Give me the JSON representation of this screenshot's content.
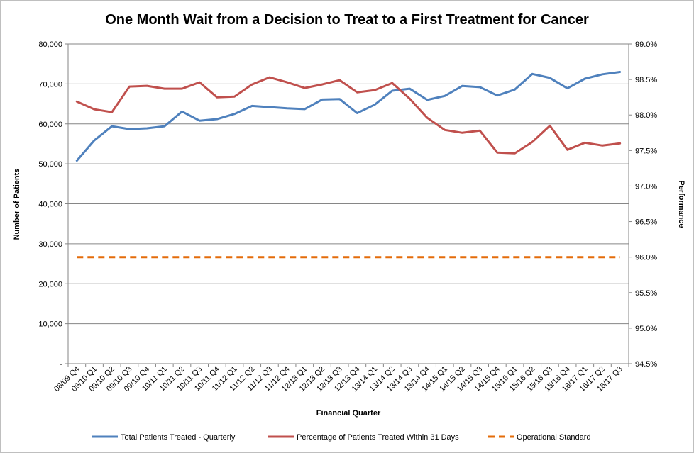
{
  "chart_data": {
    "type": "line",
    "title": "One Month Wait from a Decision to Treat to a First Treatment for Cancer",
    "xlabel": "Financial Quarter",
    "ylabel": "Number of Patients",
    "y2label": "Performance",
    "ylim": [
      0,
      80000
    ],
    "y2lim": [
      94.5,
      99.0
    ],
    "yticks": [
      "-",
      "10,000",
      "20,000",
      "30,000",
      "40,000",
      "50,000",
      "60,000",
      "70,000",
      "80,000"
    ],
    "y2ticks": [
      "94.5%",
      "95.0%",
      "95.5%",
      "96.0%",
      "96.5%",
      "97.0%",
      "97.5%",
      "98.0%",
      "98.5%",
      "99.0%"
    ],
    "grid": true,
    "legend_position": "bottom",
    "categories": [
      "08/09 Q4",
      "09/10 Q1",
      "09/10 Q2",
      "09/10 Q3",
      "09/10 Q4",
      "10/11 Q1",
      "10/11 Q2",
      "10/11 Q3",
      "10/11 Q4",
      "11/12 Q1",
      "11/12 Q2",
      "11/12 Q3",
      "11/12 Q4",
      "12/13 Q1",
      "12/13 Q2",
      "12/13 Q3",
      "12/13 Q4",
      "13/14 Q1",
      "13/14 Q2",
      "13/14 Q3",
      "13/14 Q4",
      "14/15 Q1",
      "14/15 Q2",
      "14/15 Q3",
      "14/15 Q4",
      "15/16 Q1",
      "15/16 Q2",
      "15/16 Q3",
      "15/16 Q4",
      "16/17 Q1",
      "16/17 Q2",
      "16/17 Q3"
    ],
    "series": [
      {
        "name": "Total Patients Treated - Quarterly",
        "axis": "left",
        "color": "#4f81bd",
        "dashed": false,
        "values": [
          50800,
          55900,
          59400,
          58700,
          58900,
          59400,
          63100,
          60800,
          61200,
          62500,
          64500,
          64200,
          63900,
          63700,
          66100,
          66200,
          62700,
          64800,
          68300,
          68800,
          66000,
          67000,
          69500,
          69200,
          67100,
          68600,
          72500,
          71500,
          68900,
          71300,
          72400,
          73000
        ]
      },
      {
        "name": "Percentage of Patients Treated Within 31 Days",
        "axis": "right",
        "color": "#c0504d",
        "dashed": false,
        "values": [
          98.19,
          98.08,
          98.04,
          98.4,
          98.41,
          98.37,
          98.37,
          98.46,
          98.25,
          98.26,
          98.43,
          98.53,
          98.46,
          98.38,
          98.43,
          98.49,
          98.32,
          98.35,
          98.45,
          98.23,
          97.96,
          97.79,
          97.75,
          97.78,
          97.47,
          97.46,
          97.62,
          97.85,
          97.51,
          97.61,
          97.57,
          97.6
        ]
      },
      {
        "name": "Operational Standard",
        "axis": "right",
        "color": "#e46c0a",
        "dashed": true,
        "values": [
          96.0,
          96.0,
          96.0,
          96.0,
          96.0,
          96.0,
          96.0,
          96.0,
          96.0,
          96.0,
          96.0,
          96.0,
          96.0,
          96.0,
          96.0,
          96.0,
          96.0,
          96.0,
          96.0,
          96.0,
          96.0,
          96.0,
          96.0,
          96.0,
          96.0,
          96.0,
          96.0,
          96.0,
          96.0,
          96.0,
          96.0,
          96.0
        ]
      }
    ]
  }
}
